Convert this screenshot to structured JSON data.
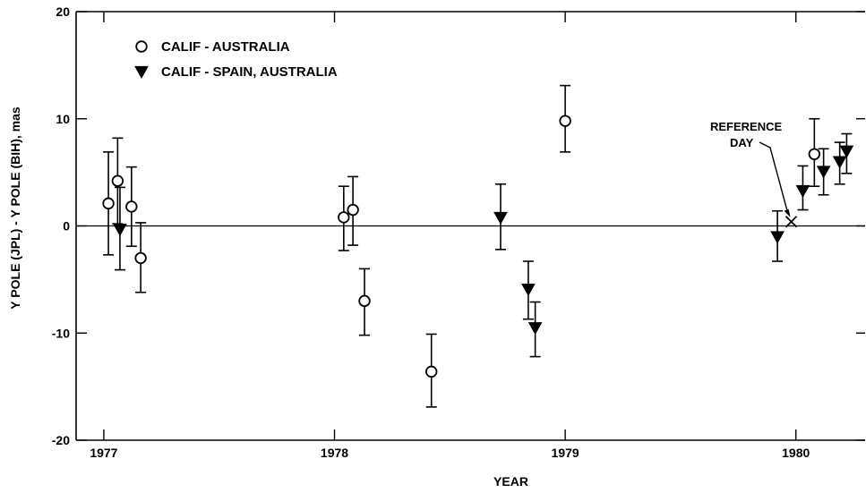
{
  "chart_data": {
    "type": "scatter",
    "xlabel": "YEAR",
    "ylabel": "Y POLE (JPL) - Y POLE (BIH), mas",
    "xlim": [
      1976.88,
      1980.3
    ],
    "ylim": [
      -20,
      20
    ],
    "x_ticks": [
      1977,
      1978,
      1979,
      1980
    ],
    "x_tick_labels": [
      "1977",
      "1978",
      "1979",
      "1980"
    ],
    "y_ticks": [
      -20,
      -10,
      0,
      10,
      20
    ],
    "y_tick_labels": [
      "-20",
      "-10",
      "0",
      "10",
      "20"
    ],
    "grid": false,
    "zero_line": true,
    "legend_position": "top-left",
    "series": [
      {
        "name": "CALIF - AUSTRALIA",
        "marker": "open-circle",
        "color": "#000000",
        "points": [
          {
            "x": 1977.02,
            "y": 2.1,
            "ylo": -2.7,
            "yhi": 6.9
          },
          {
            "x": 1977.06,
            "y": 4.2,
            "ylo": 0.2,
            "yhi": 8.2
          },
          {
            "x": 1977.12,
            "y": 1.8,
            "ylo": -1.9,
            "yhi": 5.5
          },
          {
            "x": 1977.16,
            "y": -3.0,
            "ylo": -6.2,
            "yhi": 0.3
          },
          {
            "x": 1978.04,
            "y": 0.8,
            "ylo": -2.3,
            "yhi": 3.7
          },
          {
            "x": 1978.08,
            "y": 1.5,
            "ylo": -1.8,
            "yhi": 4.6
          },
          {
            "x": 1978.13,
            "y": -7.0,
            "ylo": -10.2,
            "yhi": -4.0
          },
          {
            "x": 1978.42,
            "y": -13.6,
            "ylo": -16.9,
            "yhi": -10.1
          },
          {
            "x": 1979.0,
            "y": 9.8,
            "ylo": 6.9,
            "yhi": 13.1
          },
          {
            "x": 1980.08,
            "y": 6.7,
            "ylo": 3.7,
            "yhi": 10.0
          }
        ]
      },
      {
        "name": "CALIF - SPAIN, AUSTRALIA",
        "marker": "filled-triangle-down",
        "color": "#000000",
        "points": [
          {
            "x": 1977.07,
            "y": -0.3,
            "ylo": -4.1,
            "yhi": 3.6
          },
          {
            "x": 1978.72,
            "y": 0.8,
            "ylo": -2.2,
            "yhi": 3.9
          },
          {
            "x": 1978.84,
            "y": -5.9,
            "ylo": -8.7,
            "yhi": -3.3
          },
          {
            "x": 1978.87,
            "y": -9.5,
            "ylo": -12.2,
            "yhi": -7.1
          },
          {
            "x": 1979.92,
            "y": -1.0,
            "ylo": -3.3,
            "yhi": 1.4
          },
          {
            "x": 1980.03,
            "y": 3.3,
            "ylo": 1.5,
            "yhi": 5.6
          },
          {
            "x": 1980.12,
            "y": 5.1,
            "ylo": 2.9,
            "yhi": 7.2
          },
          {
            "x": 1980.19,
            "y": 6.0,
            "ylo": 3.9,
            "yhi": 7.8
          },
          {
            "x": 1980.22,
            "y": 7.0,
            "ylo": 4.9,
            "yhi": 8.6
          }
        ]
      }
    ],
    "annotations": [
      {
        "text_lines": [
          "REFERENCE",
          "DAY"
        ],
        "marker": "x",
        "x": 1979.98,
        "y": 0.4
      }
    ]
  }
}
